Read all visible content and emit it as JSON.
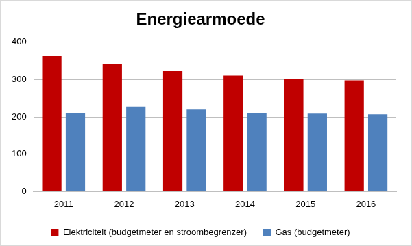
{
  "chart_data": {
    "type": "bar",
    "title": "Energiearmoede",
    "categories": [
      "2011",
      "2012",
      "2013",
      "2014",
      "2015",
      "2016"
    ],
    "series": [
      {
        "name": "Elektriciteit (budgetmeter en stroombegrenzer)",
        "color": "#c00000",
        "values": [
          363,
          342,
          323,
          311,
          302,
          298
        ]
      },
      {
        "name": "Gas (budgetmeter)",
        "color": "#4f81bd",
        "values": [
          211,
          228,
          220,
          211,
          209,
          207
        ]
      }
    ],
    "ylim": [
      0,
      400
    ],
    "yticks": [
      0,
      100,
      200,
      300,
      400
    ],
    "grid": true,
    "legend": "bottom"
  }
}
